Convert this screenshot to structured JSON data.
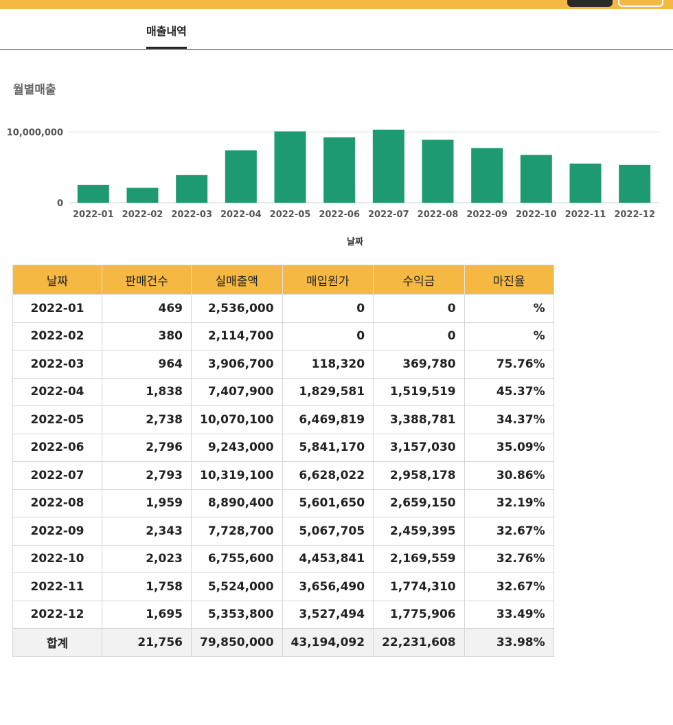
{
  "tabs": [
    {
      "label": "매출내역"
    }
  ],
  "section_title": "월별매출",
  "colors": {
    "accent": "#f5b843",
    "bar": "#1e9a72"
  },
  "chart_data": {
    "type": "bar",
    "categories": [
      "2022-01",
      "2022-02",
      "2022-03",
      "2022-04",
      "2022-05",
      "2022-06",
      "2022-07",
      "2022-08",
      "2022-09",
      "2022-10",
      "2022-11",
      "2022-12"
    ],
    "values": [
      2536000,
      2114700,
      3906700,
      7407900,
      10070100,
      9243000,
      10319100,
      8890400,
      7728700,
      6755600,
      5524000,
      5353800
    ],
    "title": "",
    "xlabel": "날짜",
    "ylabel": "",
    "ylim": [
      0,
      10000000
    ],
    "yticks": [
      "0",
      "10,000,000"
    ],
    "grid": true
  },
  "table": {
    "headers": [
      "날짜",
      "판매건수",
      "실매출액",
      "매입원가",
      "수익금",
      "마진율"
    ],
    "rows": [
      [
        "2022-01",
        "469",
        "2,536,000",
        "0",
        "0",
        "%"
      ],
      [
        "2022-02",
        "380",
        "2,114,700",
        "0",
        "0",
        "%"
      ],
      [
        "2022-03",
        "964",
        "3,906,700",
        "118,320",
        "369,780",
        "75.76%"
      ],
      [
        "2022-04",
        "1,838",
        "7,407,900",
        "1,829,581",
        "1,519,519",
        "45.37%"
      ],
      [
        "2022-05",
        "2,738",
        "10,070,100",
        "6,469,819",
        "3,388,781",
        "34.37%"
      ],
      [
        "2022-06",
        "2,796",
        "9,243,000",
        "5,841,170",
        "3,157,030",
        "35.09%"
      ],
      [
        "2022-07",
        "2,793",
        "10,319,100",
        "6,628,022",
        "2,958,178",
        "30.86%"
      ],
      [
        "2022-08",
        "1,959",
        "8,890,400",
        "5,601,650",
        "2,659,150",
        "32.19%"
      ],
      [
        "2022-09",
        "2,343",
        "7,728,700",
        "5,067,705",
        "2,459,395",
        "32.67%"
      ],
      [
        "2022-10",
        "2,023",
        "6,755,600",
        "4,453,841",
        "2,169,559",
        "32.76%"
      ],
      [
        "2022-11",
        "1,758",
        "5,524,000",
        "3,656,490",
        "1,774,310",
        "32.67%"
      ],
      [
        "2022-12",
        "1,695",
        "5,353,800",
        "3,527,494",
        "1,775,906",
        "33.49%"
      ]
    ],
    "total": [
      "합계",
      "21,756",
      "79,850,000",
      "43,194,092",
      "22,231,608",
      "33.98%"
    ]
  }
}
